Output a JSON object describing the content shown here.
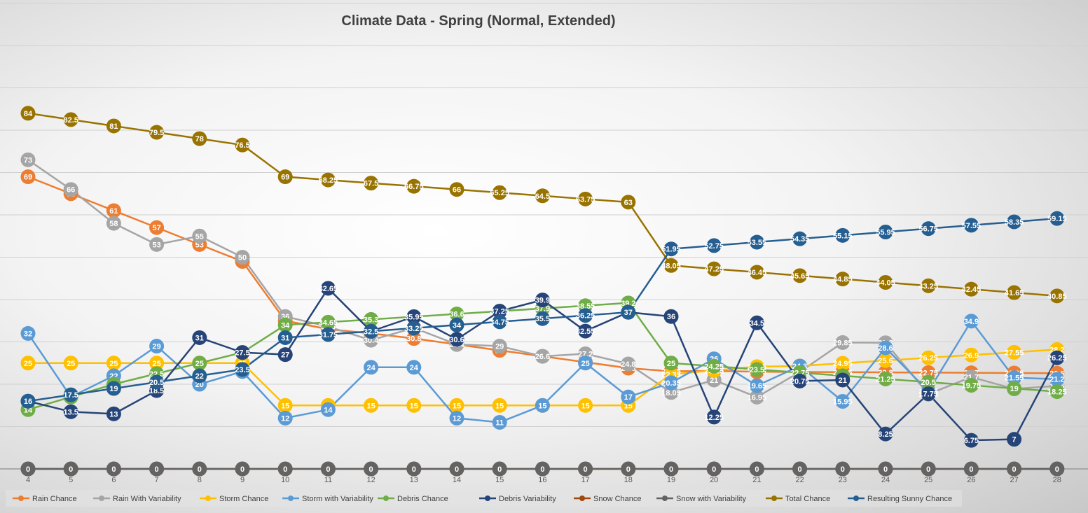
{
  "chart_data": {
    "type": "line",
    "title": "Climate Data - Spring (Normal, Extended)",
    "categories": [
      "4",
      "5",
      "6",
      "7",
      "8",
      "9",
      "10",
      "11",
      "12",
      "13",
      "14",
      "15",
      "16",
      "17",
      "18",
      "19",
      "20",
      "21",
      "22",
      "23",
      "24",
      "25",
      "26",
      "27",
      "28"
    ],
    "ylim": [
      0,
      110
    ],
    "grid": true,
    "legend_position": "bottom",
    "series": [
      {
        "name": "Rain Chance",
        "color": "#ED7D31",
        "values": [
          69,
          65,
          61,
          57,
          53,
          49,
          35,
          33,
          32,
          30.8,
          29.4,
          28,
          26.6,
          25.2,
          23.8,
          23.05,
          23.15,
          22.95,
          22.9,
          22.85,
          22.8,
          22.75,
          22.7,
          22.65,
          22.6
        ]
      },
      {
        "name": "Rain With Variability",
        "color": "#A5A5A5",
        "values": [
          73,
          66,
          58,
          53,
          55,
          50,
          36,
          33.6,
          30.4,
          33.3,
          29.4,
          29,
          26.6,
          27.2,
          24.8,
          18.05,
          21,
          16.95,
          22.9,
          29.85,
          29.8,
          17.65,
          21.7,
          18.9,
          19.6
        ]
      },
      {
        "name": "Storm Chance",
        "color": "#FFC000",
        "values": [
          25,
          25,
          25,
          25,
          25,
          25,
          15,
          15,
          15,
          15,
          15,
          15,
          15,
          15,
          15,
          22.35,
          23.25,
          24.15,
          24.3,
          24.95,
          25.6,
          26.25,
          26.9,
          27.55,
          28.2
        ]
      },
      {
        "name": "Storm with Variability",
        "color": "#5B9BD5",
        "values": [
          32,
          17,
          22,
          29,
          20,
          23,
          12,
          14,
          24,
          24,
          12,
          11,
          15,
          25,
          17,
          20.35,
          26,
          19.65,
          24.3,
          15.95,
          28.6,
          18.35,
          34.9,
          21.55,
          21.2
        ]
      },
      {
        "name": "Debris Chance",
        "color": "#70AD47",
        "values": [
          14,
          17,
          20,
          22.5,
          25,
          27.5,
          34,
          34.65,
          35.3,
          35.95,
          36.6,
          37.25,
          37.9,
          38.55,
          39.2,
          25,
          24.25,
          23.5,
          22.75,
          22,
          21.25,
          20.5,
          19.75,
          19,
          18.25
        ]
      },
      {
        "name": "Debris Variability",
        "color": "#264478",
        "values": [
          16,
          13.5,
          13,
          18.5,
          31,
          27.5,
          27,
          42.65,
          32.5,
          35.95,
          30.6,
          37.25,
          39.9,
          32.55,
          37,
          36,
          12.25,
          34.5,
          20.75,
          21,
          8.25,
          17.75,
          6.75,
          7,
          26.25
        ]
      },
      {
        "name": "Snow Chance",
        "color": "#9E480E",
        "values": [
          0,
          0,
          0,
          0,
          0,
          0,
          0,
          0,
          0,
          0,
          0,
          0,
          0,
          0,
          0,
          0,
          0,
          0,
          0,
          0,
          0,
          0,
          0,
          0,
          0
        ]
      },
      {
        "name": "Snow with Variability",
        "color": "#636363",
        "values": [
          0,
          0,
          0,
          0,
          0,
          0,
          0,
          0,
          0,
          0,
          0,
          0,
          0,
          0,
          0,
          0,
          0,
          0,
          0,
          0,
          0,
          0,
          0,
          0,
          0
        ]
      },
      {
        "name": "Total Chance",
        "color": "#997300",
        "values": [
          84,
          82.5,
          81,
          79.5,
          78,
          76.5,
          69,
          68.25,
          67.5,
          66.75,
          66,
          65.25,
          64.5,
          63.75,
          63,
          48.05,
          47.25,
          46.45,
          45.65,
          44.85,
          44.05,
          43.25,
          42.45,
          41.65,
          40.85
        ]
      },
      {
        "name": "Resulting Sunny Chance",
        "color": "#255E91",
        "values": [
          16,
          17.5,
          19,
          20.5,
          22,
          23.5,
          31,
          31.75,
          32.5,
          33.25,
          34,
          34.75,
          35.5,
          36.25,
          37,
          51.95,
          52.75,
          53.55,
          54.35,
          55.15,
          55.95,
          56.75,
          57.55,
          58.35,
          59.15
        ]
      }
    ]
  }
}
